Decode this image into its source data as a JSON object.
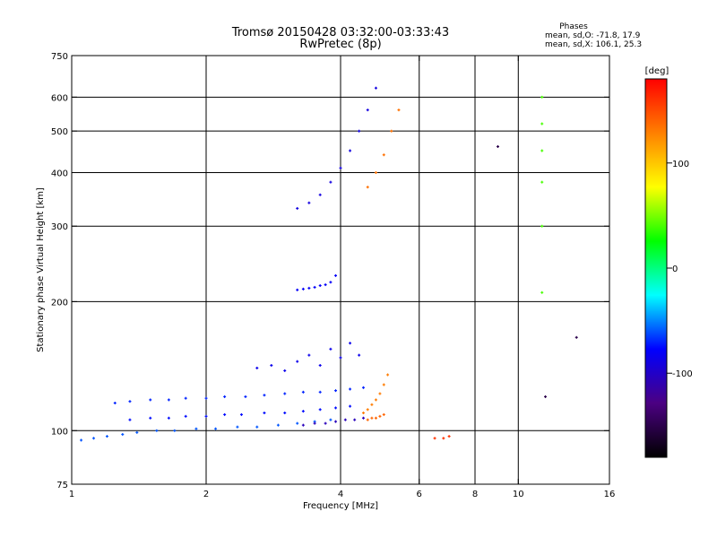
{
  "chart_data": {
    "type": "scatter",
    "title": "Tromsø 20150428 03:32:00-03:33:43",
    "subtitle": "RwPretec (8p)",
    "xlabel": "Frequency [MHz]",
    "ylabel": "Stationary phase Virtual Height [km]",
    "x_scale": "log",
    "y_scale": "log",
    "xlim": [
      1,
      16
    ],
    "ylim": [
      75,
      750
    ],
    "x_ticks": [
      1,
      2,
      4,
      6,
      8,
      10,
      16
    ],
    "x_tick_labels": [
      "1",
      "2",
      "4",
      "6",
      "8",
      "10",
      "16"
    ],
    "x_grid": [
      2,
      4,
      6,
      8,
      10
    ],
    "y_ticks": [
      75,
      100,
      200,
      300,
      400,
      500,
      600,
      750
    ],
    "y_tick_labels": [
      "75",
      "100",
      "200",
      "300",
      "400",
      "500",
      "600",
      "750"
    ],
    "y_grid": [
      100,
      200,
      300,
      400,
      500,
      600
    ],
    "grid": true,
    "phases_box": {
      "heading": "Phases",
      "line1": "mean, sd,O: -71.8, 17.9",
      "line2": "mean, sd,X: 106.1, 25.3"
    },
    "colorbar": {
      "label": "[deg]",
      "range": [
        -180,
        180
      ],
      "ticks": [
        100,
        0,
        -100
      ],
      "tick_labels": [
        "100",
        "0",
        "-100"
      ],
      "colors": [
        "#000000",
        "#4b0082",
        "#0000ff",
        "#00ffff",
        "#00ff00",
        "#ffff00",
        "#ff8000",
        "#ff0000"
      ]
    },
    "series": [
      {
        "x": [
          1.05,
          1.12,
          1.2,
          1.3,
          1.4,
          1.55,
          1.7,
          1.9,
          2.1,
          2.35,
          2.6,
          2.9,
          3.2,
          3.5,
          3.8
        ],
        "y": [
          95,
          96,
          97,
          98,
          99,
          100,
          100,
          101,
          101,
          102,
          102,
          103,
          104,
          105,
          106
        ],
        "phase": -60
      },
      {
        "x": [
          1.25,
          1.35,
          1.5,
          1.65,
          1.8,
          2.0,
          2.2,
          2.45,
          2.7,
          3.0,
          3.3,
          3.6,
          3.9,
          4.2,
          4.5
        ],
        "y": [
          116,
          117,
          118,
          118,
          119,
          119,
          120,
          120,
          121,
          122,
          123,
          123,
          124,
          125,
          126
        ],
        "phase": -70
      },
      {
        "x": [
          1.35,
          1.5,
          1.65,
          1.8,
          2.0,
          2.2,
          2.4,
          2.7,
          3.0,
          3.3,
          3.6,
          3.9,
          4.2
        ],
        "y": [
          106,
          107,
          107,
          108,
          108,
          109,
          109,
          110,
          110,
          111,
          112,
          113,
          114
        ],
        "phase": -75
      },
      {
        "x": [
          2.6,
          2.8,
          3.0,
          3.2,
          3.4,
          3.6,
          3.8,
          4.0,
          4.2,
          4.4
        ],
        "y": [
          140,
          142,
          138,
          145,
          150,
          142,
          155,
          148,
          160,
          150
        ],
        "phase": -85
      },
      {
        "x": [
          3.3,
          3.5,
          3.7,
          3.9,
          4.1,
          4.3,
          4.5
        ],
        "y": [
          103,
          104,
          104,
          105,
          106,
          106,
          107
        ],
        "phase": -105
      },
      {
        "x": [
          3.2,
          3.3,
          3.4,
          3.5,
          3.6,
          3.7,
          3.8,
          3.9
        ],
        "y": [
          213,
          214,
          215,
          216,
          218,
          219,
          222,
          230
        ],
        "phase": -80
      },
      {
        "x": [
          3.2,
          3.4,
          3.6,
          3.8,
          4.0,
          4.2,
          4.4,
          4.6,
          4.8
        ],
        "y": [
          330,
          340,
          355,
          380,
          410,
          450,
          500,
          560,
          630
        ],
        "phase": -90
      },
      {
        "x": [
          4.5,
          4.6,
          4.7,
          4.8,
          4.9,
          5.0,
          5.1
        ],
        "y": [
          110,
          112,
          115,
          118,
          122,
          128,
          135
        ],
        "phase": 130
      },
      {
        "x": [
          4.6,
          4.7,
          4.8,
          4.9,
          5.0
        ],
        "y": [
          106,
          107,
          107,
          108,
          109
        ],
        "phase": 140
      },
      {
        "x": [
          4.6,
          4.8,
          5.0,
          5.2,
          5.4
        ],
        "y": [
          370,
          400,
          440,
          500,
          560
        ],
        "phase": 135
      },
      {
        "x": [
          11.3,
          11.3,
          11.3,
          11.3,
          11.3,
          11.3
        ],
        "y": [
          210,
          300,
          380,
          450,
          520,
          600
        ],
        "phase": 40
      },
      {
        "x": [
          6.5,
          6.8,
          7.0
        ],
        "y": [
          96,
          96,
          97
        ],
        "phase": 160
      },
      {
        "x": [
          9.0,
          13.5,
          11.5
        ],
        "y": [
          460,
          165,
          120
        ],
        "phase": -150
      }
    ]
  }
}
